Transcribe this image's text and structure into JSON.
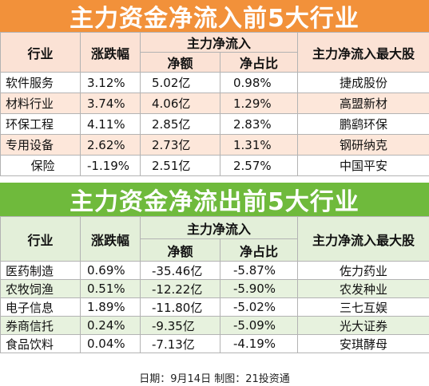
{
  "inflow": {
    "title": "主力资金净流入前5大行业",
    "header": {
      "industry": "行业",
      "change": "涨跌幅",
      "group": "主力净流入",
      "amount": "净额",
      "ratio": "净占比",
      "top_stock": "主力净流入最大股"
    },
    "rows": [
      {
        "industry": "软件服务",
        "change": "3.12%",
        "amount": "5.02亿",
        "ratio": "0.98%",
        "top_stock": "捷成股份"
      },
      {
        "industry": "材料行业",
        "change": "3.74%",
        "amount": "4.06亿",
        "ratio": "1.29%",
        "top_stock": "高盟新材"
      },
      {
        "industry": "环保工程",
        "change": "4.11%",
        "amount": "2.85亿",
        "ratio": "2.83%",
        "top_stock": "鹏鹞环保"
      },
      {
        "industry": "专用设备",
        "change": "2.62%",
        "amount": "2.73亿",
        "ratio": "1.31%",
        "top_stock": "钢研纳克"
      },
      {
        "industry": "保险",
        "change": "-1.19%",
        "amount": "2.51亿",
        "ratio": "2.57%",
        "top_stock": "中国平安"
      }
    ]
  },
  "outflow": {
    "title": "主力资金净流出前5大行业",
    "header": {
      "industry": "行业",
      "change": "涨跌幅",
      "group": "主力净流入",
      "amount": "净额",
      "ratio": "净占比",
      "top_stock": "主力净流入最大股"
    },
    "rows": [
      {
        "industry": "医药制造",
        "change": "0.69%",
        "amount": "-35.46亿",
        "ratio": "-5.87%",
        "top_stock": "佐力药业"
      },
      {
        "industry": "农牧饲渔",
        "change": "0.51%",
        "amount": "-12.22亿",
        "ratio": "-5.90%",
        "top_stock": "农发种业"
      },
      {
        "industry": "电子信息",
        "change": "1.89%",
        "amount": "-11.80亿",
        "ratio": "-5.02%",
        "top_stock": "三七互娱"
      },
      {
        "industry": "券商信托",
        "change": "0.24%",
        "amount": "-9.35亿",
        "ratio": "-5.09%",
        "top_stock": "光大证券"
      },
      {
        "industry": "食品饮料",
        "change": "0.04%",
        "amount": "-7.13亿",
        "ratio": "-4.19%",
        "top_stock": "安琪酵母"
      }
    ]
  },
  "footer": "日期：9月14日 制图：21投资通",
  "colors": {
    "inflow_banner": "#f2913a",
    "outflow_banner": "#6fba3c"
  }
}
